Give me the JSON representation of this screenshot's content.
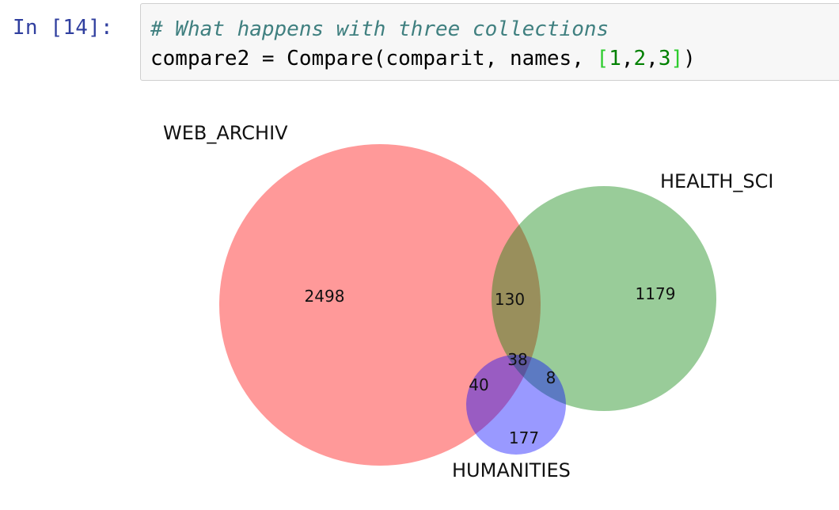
{
  "cell": {
    "prompt": "In [14]:",
    "code_comment": "# What happens with three collections",
    "code_line2_prefix": "compare2 = Compare(comparit, names, ",
    "code_list_open": "[",
    "code_list_items": [
      "1",
      "2",
      "3"
    ],
    "code_list_sep": ",",
    "code_list_close": "]",
    "code_line2_suffix": ")"
  },
  "venn": {
    "set_labels": {
      "a": "WEB_ARCHIV",
      "b": "HEALTH_SCI",
      "c": "HUMANITIES"
    },
    "regions": {
      "a_only": "2498",
      "b_only": "1179",
      "ab_only": "130",
      "abc": "38",
      "ac_only": "40",
      "bc_only": "8",
      "c_only": "177"
    },
    "colors": {
      "a": "#ff0000",
      "b": "#008000",
      "c": "#0000ff"
    }
  }
}
